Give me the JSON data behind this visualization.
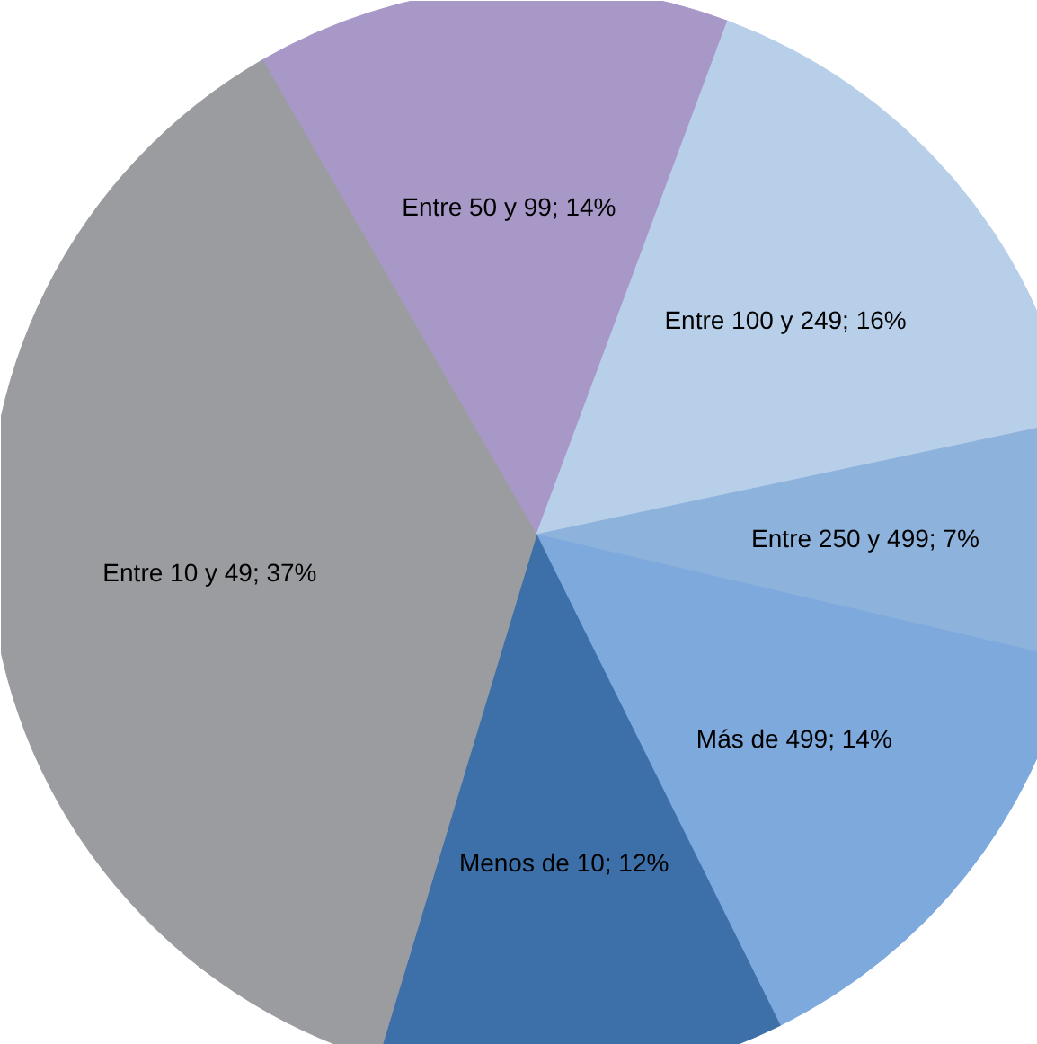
{
  "chart_data": {
    "type": "pie",
    "categories": [
      "Entre 50 y 99",
      "Entre 100 y 249",
      "Entre 250 y 499",
      "Más de 499",
      "Menos de 10",
      "Entre 10 y 49"
    ],
    "values": [
      14,
      16,
      7,
      14,
      12,
      37
    ],
    "colors": [
      "#a898c8",
      "#b8cfe9",
      "#8db2dc",
      "#7ea9dc",
      "#3d6fa8",
      "#9a9c9f"
    ],
    "value_labels": [
      "14%",
      "16%",
      "7%",
      "14%",
      "12%",
      "37%"
    ]
  }
}
